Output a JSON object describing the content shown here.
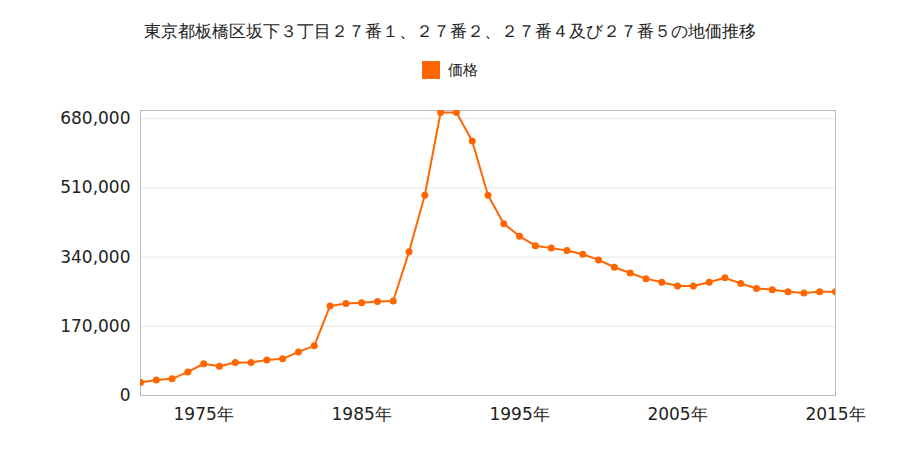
{
  "chart_data": {
    "type": "line",
    "title": "東京都板橋区坂下３丁目２７番１、２７番２、２７番４及び２７番５の地価推移",
    "x": [
      1971,
      1972,
      1973,
      1974,
      1975,
      1976,
      1977,
      1978,
      1979,
      1980,
      1981,
      1982,
      1983,
      1984,
      1985,
      1986,
      1987,
      1988,
      1989,
      1990,
      1991,
      1992,
      1993,
      1994,
      1995,
      1996,
      1997,
      1998,
      1999,
      2000,
      2001,
      2002,
      2003,
      2004,
      2005,
      2006,
      2007,
      2008,
      2009,
      2010,
      2011,
      2012,
      2013,
      2014,
      2015
    ],
    "series": [
      {
        "name": "価格",
        "color": "#ff6600",
        "marker": "circle",
        "values": [
          32000,
          38000,
          41000,
          58000,
          78000,
          72000,
          81000,
          81000,
          87000,
          90000,
          107000,
          122000,
          220000,
          226000,
          228000,
          231000,
          232000,
          353000,
          492000,
          695000,
          695000,
          625000,
          492000,
          422000,
          391000,
          368000,
          362000,
          356000,
          347000,
          333000,
          315000,
          301000,
          287000,
          278000,
          269000,
          269000,
          278000,
          289000,
          275000,
          263000,
          260000,
          255000,
          252000,
          255000,
          255000
        ]
      }
    ],
    "xlim": [
      1971,
      2015
    ],
    "xticks": [
      {
        "value": 1975,
        "label": "1975年"
      },
      {
        "value": 1985,
        "label": "1985年"
      },
      {
        "value": 1995,
        "label": "1995年"
      },
      {
        "value": 2005,
        "label": "2005年"
      },
      {
        "value": 2015,
        "label": "2015年"
      }
    ],
    "ylim": [
      0,
      700000
    ],
    "yticks": [
      0,
      {
        "value": 170000,
        "label": "170,000"
      },
      {
        "value": 340000,
        "label": "340,000"
      },
      {
        "value": 510000,
        "label": "510,000"
      },
      {
        "value": 680000,
        "label": "680,000"
      }
    ],
    "grid": true,
    "legend": "top"
  }
}
